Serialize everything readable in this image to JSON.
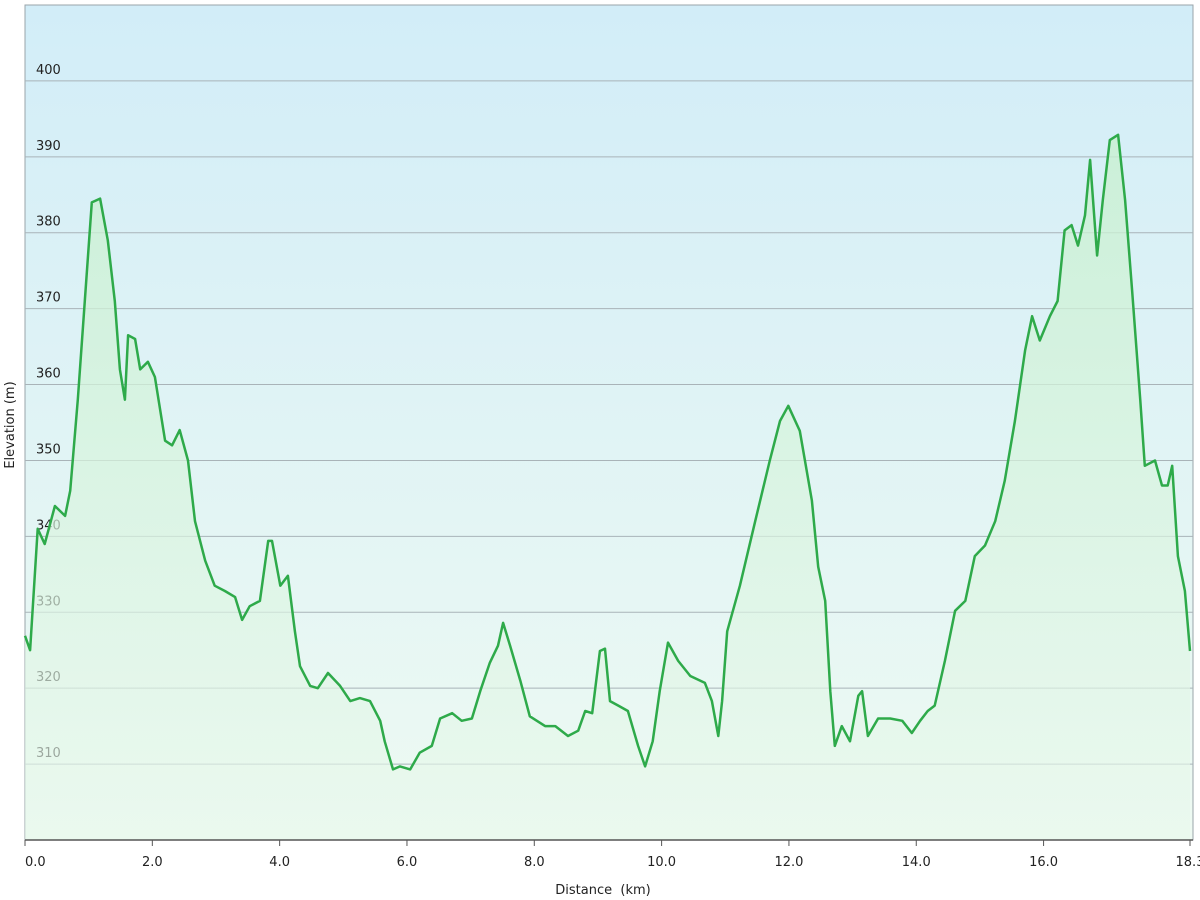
{
  "chart_data": {
    "type": "area",
    "x_label": "Distance  (km)",
    "y_label": "Elevation (m)",
    "line_color": "#2eaa4a",
    "fill_color": "#c8f0d0",
    "grid": true,
    "xlim": [
      0,
      18.3
    ],
    "ylim": [
      300,
      410
    ],
    "xticks": [
      {
        "value": 0,
        "label": "0.0"
      },
      {
        "value": 2,
        "label": "2.0"
      },
      {
        "value": 4,
        "label": "4.0"
      },
      {
        "value": 6,
        "label": "6.0"
      },
      {
        "value": 8,
        "label": "8.0"
      },
      {
        "value": 10,
        "label": "10.0"
      },
      {
        "value": 12,
        "label": "12.0"
      },
      {
        "value": 14,
        "label": "14.0"
      },
      {
        "value": 16,
        "label": "16.0"
      },
      {
        "value": 18.3,
        "label": "18.3"
      }
    ],
    "yticks": [
      310,
      320,
      330,
      340,
      350,
      360,
      370,
      380,
      390,
      400
    ],
    "x": [
      0,
      0.08,
      0.2,
      0.31,
      0.47,
      0.63,
      0.71,
      0.83,
      0.94,
      1.05,
      1.18,
      1.3,
      1.41,
      1.49,
      1.57,
      1.62,
      1.73,
      1.81,
      1.93,
      2.04,
      2.2,
      2.31,
      2.43,
      2.56,
      2.67,
      2.83,
      2.98,
      3.14,
      3.3,
      3.41,
      3.53,
      3.69,
      3.82,
      3.88,
      4.01,
      4.13,
      4.24,
      4.32,
      4.48,
      4.6,
      4.76,
      4.95,
      5.11,
      5.26,
      5.42,
      5.58,
      5.65,
      5.78,
      5.89,
      6.05,
      6.2,
      6.39,
      6.52,
      6.71,
      6.86,
      7.02,
      7.15,
      7.3,
      7.43,
      7.51,
      7.62,
      7.78,
      7.93,
      8.17,
      8.33,
      8.53,
      8.69,
      8.8,
      8.91,
      9.03,
      9.11,
      9.19,
      9.32,
      9.47,
      9.63,
      9.74,
      9.86,
      9.97,
      10.1,
      10.26,
      10.45,
      10.68,
      10.79,
      10.89,
      10.95,
      11.03,
      11.23,
      11.47,
      11.7,
      11.86,
      11.99,
      12.17,
      12.36,
      12.46,
      12.57,
      12.65,
      12.72,
      12.83,
      12.96,
      13.09,
      13.15,
      13.24,
      13.4,
      13.59,
      13.78,
      13.93,
      14.06,
      14.18,
      14.29,
      14.45,
      14.61,
      14.77,
      14.92,
      15.08,
      15.24,
      15.39,
      15.55,
      15.71,
      15.82,
      15.94,
      16.1,
      16.22,
      16.33,
      16.44,
      16.54,
      16.65,
      16.73,
      16.84,
      16.93,
      17.04,
      17.17,
      17.28,
      17.39,
      17.52,
      17.59,
      17.75,
      17.86,
      17.95,
      18.02,
      18.11,
      18.22,
      18.3
    ],
    "values": [
      326.9,
      325,
      341,
      339,
      344,
      342.7,
      346,
      358,
      371,
      384,
      384.5,
      379,
      371,
      362,
      358,
      366.5,
      366,
      362,
      363,
      361,
      352.6,
      352,
      354,
      350,
      342,
      336.8,
      333.5,
      332.8,
      332,
      329,
      330.8,
      331.5,
      339.4,
      339.4,
      333.5,
      334.8,
      327.5,
      322.9,
      320.3,
      320,
      322,
      320.3,
      318.3,
      318.7,
      318.3,
      315.7,
      313,
      309.3,
      309.7,
      309.3,
      311.5,
      312.4,
      316,
      316.7,
      315.7,
      316,
      319.6,
      323.3,
      325.6,
      328.6,
      325.6,
      321,
      316.3,
      315,
      315,
      313.7,
      314.4,
      317,
      316.7,
      324.9,
      325.2,
      318.3,
      317.7,
      317,
      312.4,
      309.7,
      313,
      319.6,
      326,
      323.6,
      321.6,
      320.7,
      318.3,
      313.7,
      318.3,
      327.5,
      333.5,
      342,
      350,
      355.2,
      357.2,
      353.9,
      344.7,
      336,
      331.5,
      319.6,
      312.4,
      315,
      313,
      319,
      319.6,
      313.7,
      316,
      316,
      315.7,
      314.1,
      315.7,
      317,
      317.7,
      323.6,
      330.2,
      331.5,
      337.4,
      338.8,
      342,
      347.3,
      355.2,
      364.5,
      369,
      365.8,
      369,
      371,
      380.3,
      381,
      378.3,
      382.3,
      389.6,
      377,
      384.3,
      392.2,
      392.9,
      384.3,
      372.4,
      357.9,
      349.3,
      350,
      346.7,
      346.7,
      349.3,
      337.4,
      332.8,
      324.9
    ]
  }
}
